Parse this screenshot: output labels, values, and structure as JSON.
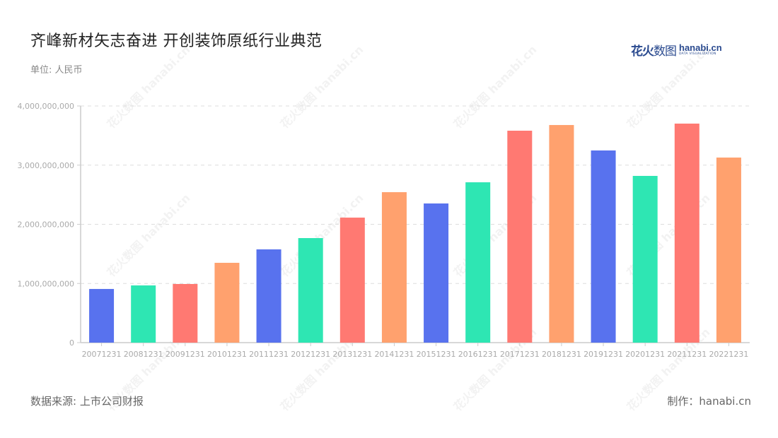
{
  "header": {
    "title": "齐峰新材矢志奋进 开创装饰原纸行业典范",
    "unit": "单位: 人民币"
  },
  "logo": {
    "cn_bold": "花火",
    "cn_light": "数图",
    "en": "hanabi.cn",
    "en_sub": "DATA VISUALIZATION"
  },
  "footer": {
    "source": "数据来源: 上市公司财报",
    "credit": "制作：hanabi.cn"
  },
  "watermark": "花火数图 hanabi.cn",
  "colors": {
    "blue": "#5872EE",
    "green": "#2EE6B3",
    "red": "#FF7972",
    "orange": "#FFA16E",
    "grid": "#dddddd",
    "axis": "#cccccc",
    "tick_label": "#aaaaaa"
  },
  "chart_data": {
    "type": "bar",
    "title": "齐峰新材矢志奋进 开创装饰原纸行业典范",
    "subtitle": "单位: 人民币",
    "xlabel": "",
    "ylabel": "",
    "ylim": [
      0,
      4000000000
    ],
    "yticks": [
      0,
      1000000000,
      2000000000,
      3000000000,
      4000000000
    ],
    "ytick_labels": [
      "0",
      "1,000,000,000",
      "2,000,000,000",
      "3,000,000,000",
      "4,000,000,000"
    ],
    "grid": true,
    "legend": "none",
    "categories": [
      "20071231",
      "20081231",
      "20091231",
      "20101231",
      "20111231",
      "20121231",
      "20131231",
      "20141231",
      "20151231",
      "20161231",
      "20171231",
      "20181231",
      "20191231",
      "20201231",
      "20211231",
      "20221231"
    ],
    "values": [
      907000000,
      967000000,
      991000000,
      1349000000,
      1576000000,
      1767000000,
      2113000000,
      2543000000,
      2352000000,
      2710000000,
      3582000000,
      3678000000,
      3248000000,
      2818000000,
      3702000000,
      3128000000
    ],
    "bar_colors": [
      "#5872EE",
      "#2EE6B3",
      "#FF7972",
      "#FFA16E",
      "#5872EE",
      "#2EE6B3",
      "#FF7972",
      "#FFA16E",
      "#5872EE",
      "#2EE6B3",
      "#FF7972",
      "#FFA16E",
      "#5872EE",
      "#2EE6B3",
      "#FF7972",
      "#FFA16E"
    ]
  }
}
